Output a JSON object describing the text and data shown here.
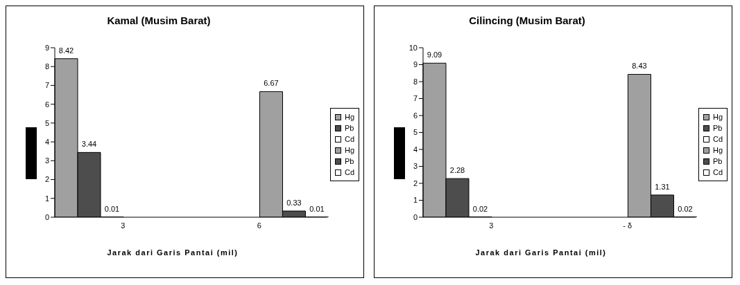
{
  "chart_data": [
    {
      "type": "bar",
      "title": "Kamal (Musim Barat)",
      "xlabel": "Jarak dari Garis Pantai (mil)",
      "categories": [
        "3",
        "6"
      ],
      "series": [
        {
          "name": "Hg",
          "color": "#a0a0a0",
          "values": [
            8.42,
            null
          ]
        },
        {
          "name": "Pb",
          "color": "#4d4d4d",
          "values": [
            3.44,
            null
          ]
        },
        {
          "name": "Cd",
          "color": "#ffffff",
          "values": [
            0.01,
            null
          ]
        },
        {
          "name": "Hg",
          "color": "#a0a0a0",
          "values": [
            null,
            6.67
          ]
        },
        {
          "name": "Pb",
          "color": "#4d4d4d",
          "values": [
            null,
            0.33
          ]
        },
        {
          "name": "Cd",
          "color": "#ffffff",
          "values": [
            null,
            0.01
          ]
        }
      ],
      "ylim": [
        0,
        9
      ],
      "yticks": [
        0,
        1,
        2,
        3,
        4,
        5,
        6,
        7,
        8,
        9
      ],
      "grid": false,
      "legend": "right",
      "data_labels": true
    },
    {
      "type": "bar",
      "title": "Cilincing (Musim Barat)",
      "xlabel": "Jarak dari Garis Pantai (mil)",
      "categories": [
        "3",
        "- δ"
      ],
      "series": [
        {
          "name": "Hg",
          "color": "#a0a0a0",
          "values": [
            9.09,
            null
          ]
        },
        {
          "name": "Pb",
          "color": "#4d4d4d",
          "values": [
            2.28,
            null
          ]
        },
        {
          "name": "Cd",
          "color": "#ffffff",
          "values": [
            0.02,
            null
          ]
        },
        {
          "name": "Hg",
          "color": "#a0a0a0",
          "values": [
            null,
            8.43
          ]
        },
        {
          "name": "Pb",
          "color": "#4d4d4d",
          "values": [
            null,
            1.31
          ]
        },
        {
          "name": "Cd",
          "color": "#ffffff",
          "values": [
            null,
            0.02
          ]
        }
      ],
      "ylim": [
        0,
        10
      ],
      "yticks": [
        0,
        1,
        2,
        3,
        4,
        5,
        6,
        7,
        8,
        9,
        10
      ],
      "grid": false,
      "legend": "right",
      "data_labels": true
    }
  ]
}
